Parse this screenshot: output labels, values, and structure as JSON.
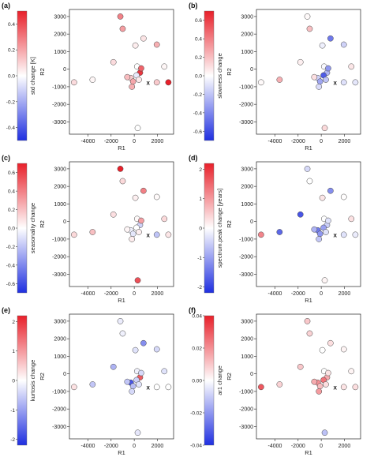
{
  "figure": {
    "panels": [
      {
        "label": "(a)",
        "colorbar_label": "std change [K]",
        "colorbar_ticks": [
          "0.4",
          "0.2",
          "0.0",
          "-0.2",
          "-0.4"
        ],
        "xlabel": "R1",
        "ylabel": "R2"
      },
      {
        "label": "(b)",
        "colorbar_label": "slowness change",
        "colorbar_ticks": [
          "0.6",
          "0.4",
          "0.2",
          "0.0",
          "-0.2",
          "-0.4",
          "-0.6"
        ],
        "xlabel": "R1",
        "ylabel": "R2"
      },
      {
        "label": "(c)",
        "colorbar_label": "seasonality change",
        "colorbar_ticks": [
          "0.6",
          "0.4",
          "0.2",
          "0.0",
          "-0.2",
          "-0.4",
          "-0.6"
        ],
        "xlabel": "R1",
        "ylabel": "R2"
      },
      {
        "label": "(d)",
        "colorbar_label": "spectrum.peak change [years]",
        "colorbar_ticks": [
          "2",
          "1",
          "0",
          "-1",
          "-2"
        ],
        "xlabel": "R1",
        "ylabel": "R2"
      },
      {
        "label": "(e)",
        "colorbar_label": "kurtosis change",
        "colorbar_ticks": [
          "2",
          "1",
          "0",
          "-1",
          "-2"
        ],
        "xlabel": "R1",
        "ylabel": "R2"
      },
      {
        "label": "(f)",
        "colorbar_label": "ar1 change",
        "colorbar_ticks": [
          "0.04",
          "0.02",
          "0.00",
          "-0.02",
          "-0.04"
        ],
        "xlabel": "R1",
        "ylabel": "R2"
      }
    ],
    "x_tick_labels": [
      "-4000",
      "-2000",
      "0",
      "2000"
    ],
    "y_tick_labels": [
      "3000",
      "2000",
      "1000",
      "0",
      "-1000",
      "-2000",
      "-3000"
    ],
    "marker_label": "x",
    "colors": {
      "positive": "#e8202a",
      "neutral": "#ffffff",
      "negative": "#1f2fe0",
      "marker_edge": "#444444"
    }
  },
  "chart_data": [
    {
      "type": "scatter",
      "title": "",
      "xlabel": "R1",
      "ylabel": "R2",
      "xlim": [
        -5600,
        3400
      ],
      "ylim": [
        -3700,
        3400
      ],
      "color_label": "std change [K]",
      "clim": [
        -0.5,
        0.5
      ],
      "points": [
        {
          "x": -5200,
          "y": -750,
          "c": 0.08
        },
        {
          "x": -3600,
          "y": -600,
          "c": 0.02
        },
        {
          "x": -1200,
          "y": 3000,
          "c": 0.28
        },
        {
          "x": -1000,
          "y": 2300,
          "c": 0.22
        },
        {
          "x": 800,
          "y": 1750,
          "c": 0.06
        },
        {
          "x": 1950,
          "y": 1400,
          "c": 0.18
        },
        {
          "x": -1800,
          "y": 400,
          "c": 0.08
        },
        {
          "x": 100,
          "y": 1350,
          "c": 0.04
        },
        {
          "x": 2600,
          "y": 150,
          "c": 0.02
        },
        {
          "x": 250,
          "y": 150,
          "c": 0.0
        },
        {
          "x": 500,
          "y": -200,
          "c": 0.45
        },
        {
          "x": 600,
          "y": 50,
          "c": 0.35
        },
        {
          "x": 200,
          "y": -350,
          "c": -0.05
        },
        {
          "x": -300,
          "y": -500,
          "c": 0.12
        },
        {
          "x": -100,
          "y": -700,
          "c": 0.2
        },
        {
          "x": 400,
          "y": -600,
          "c": 0.05
        },
        {
          "x": -600,
          "y": -450,
          "c": 0.15
        },
        {
          "x": -200,
          "y": -1000,
          "c": 0.18
        },
        {
          "x": 1950,
          "y": -750,
          "c": 0.12
        },
        {
          "x": 2950,
          "y": -750,
          "c": 0.5
        },
        {
          "x": 300,
          "y": -3350,
          "c": 0.0
        }
      ]
    },
    {
      "type": "scatter",
      "title": "",
      "xlabel": "R1",
      "ylabel": "R2",
      "xlim": [
        -5600,
        3400
      ],
      "ylim": [
        -3700,
        3400
      ],
      "color_label": "slowness change",
      "clim": [
        -0.7,
        0.7
      ],
      "points": [
        {
          "x": -5200,
          "y": -750,
          "c": 0.02
        },
        {
          "x": -3600,
          "y": -600,
          "c": 0.25
        },
        {
          "x": -1200,
          "y": 3000,
          "c": 0.02
        },
        {
          "x": -1000,
          "y": 2300,
          "c": 0.2
        },
        {
          "x": 800,
          "y": 1750,
          "c": -0.45
        },
        {
          "x": 1950,
          "y": 1400,
          "c": -0.15
        },
        {
          "x": -1800,
          "y": 400,
          "c": 0.05
        },
        {
          "x": 100,
          "y": 1350,
          "c": -0.05
        },
        {
          "x": 2600,
          "y": 150,
          "c": 0.08
        },
        {
          "x": 250,
          "y": 150,
          "c": -0.02
        },
        {
          "x": 500,
          "y": -200,
          "c": -0.25
        },
        {
          "x": 600,
          "y": 50,
          "c": -0.35
        },
        {
          "x": 200,
          "y": -350,
          "c": -0.55
        },
        {
          "x": -300,
          "y": -500,
          "c": -0.15
        },
        {
          "x": -100,
          "y": -700,
          "c": -0.3
        },
        {
          "x": 400,
          "y": -600,
          "c": -0.2
        },
        {
          "x": -600,
          "y": -450,
          "c": 0.1
        },
        {
          "x": -200,
          "y": -1000,
          "c": -0.12
        },
        {
          "x": 1950,
          "y": -750,
          "c": -0.1
        },
        {
          "x": 2950,
          "y": -750,
          "c": -0.08
        },
        {
          "x": 300,
          "y": -3350,
          "c": 0.12
        }
      ]
    },
    {
      "type": "scatter",
      "title": "",
      "xlabel": "R1",
      "ylabel": "R2",
      "xlim": [
        -5600,
        3400
      ],
      "ylim": [
        -3700,
        3400
      ],
      "color_label": "seasonality change",
      "clim": [
        -0.7,
        0.7
      ],
      "points": [
        {
          "x": -5200,
          "y": -750,
          "c": 0.12
        },
        {
          "x": -3600,
          "y": -600,
          "c": 0.2
        },
        {
          "x": -1200,
          "y": 3000,
          "c": 0.7
        },
        {
          "x": -1000,
          "y": 2300,
          "c": 0.12
        },
        {
          "x": 800,
          "y": 1750,
          "c": 0.4
        },
        {
          "x": 1950,
          "y": 1400,
          "c": 0.02
        },
        {
          "x": -1800,
          "y": 400,
          "c": 0.1
        },
        {
          "x": 100,
          "y": 1350,
          "c": 0.05
        },
        {
          "x": 2600,
          "y": 150,
          "c": 0.12
        },
        {
          "x": 250,
          "y": 150,
          "c": 0.02
        },
        {
          "x": 500,
          "y": -200,
          "c": -0.15
        },
        {
          "x": 600,
          "y": 50,
          "c": 0.3
        },
        {
          "x": 200,
          "y": -350,
          "c": 0.0
        },
        {
          "x": -300,
          "y": -500,
          "c": -0.05
        },
        {
          "x": -100,
          "y": -700,
          "c": -0.08
        },
        {
          "x": 400,
          "y": -600,
          "c": 0.05
        },
        {
          "x": -600,
          "y": -450,
          "c": 0.03
        },
        {
          "x": -200,
          "y": -1000,
          "c": 0.06
        },
        {
          "x": 1950,
          "y": -750,
          "c": -0.2
        },
        {
          "x": 2950,
          "y": -750,
          "c": 0.08
        },
        {
          "x": 300,
          "y": -3350,
          "c": 0.55
        }
      ]
    },
    {
      "type": "scatter",
      "title": "",
      "xlabel": "R1",
      "ylabel": "R2",
      "xlim": [
        -5600,
        3400
      ],
      "ylim": [
        -3700,
        3400
      ],
      "color_label": "spectrum.peak change [years]",
      "clim": [
        -2.2,
        2.2
      ],
      "points": [
        {
          "x": -5200,
          "y": -750,
          "c": 1.2
        },
        {
          "x": -3600,
          "y": -600,
          "c": -1.6
        },
        {
          "x": -1200,
          "y": 3000,
          "c": -0.4
        },
        {
          "x": -1000,
          "y": 2300,
          "c": 0.0
        },
        {
          "x": 800,
          "y": 1750,
          "c": -1.2
        },
        {
          "x": 1950,
          "y": 1400,
          "c": 0.02
        },
        {
          "x": -1800,
          "y": 400,
          "c": -1.8
        },
        {
          "x": 100,
          "y": 1350,
          "c": 0.25
        },
        {
          "x": 2600,
          "y": 150,
          "c": 0.3
        },
        {
          "x": 250,
          "y": 150,
          "c": 0.0
        },
        {
          "x": 500,
          "y": -200,
          "c": -0.5
        },
        {
          "x": 600,
          "y": 50,
          "c": -0.3
        },
        {
          "x": 200,
          "y": -350,
          "c": -1.0
        },
        {
          "x": -300,
          "y": -500,
          "c": -1.4
        },
        {
          "x": -100,
          "y": -700,
          "c": -1.1
        },
        {
          "x": 400,
          "y": -600,
          "c": -0.3
        },
        {
          "x": -600,
          "y": -450,
          "c": -0.8
        },
        {
          "x": -200,
          "y": -1000,
          "c": -0.6
        },
        {
          "x": 1950,
          "y": -750,
          "c": -0.3
        },
        {
          "x": 2950,
          "y": -750,
          "c": -0.2
        },
        {
          "x": 300,
          "y": -3350,
          "c": 0.1
        }
      ]
    },
    {
      "type": "scatter",
      "title": "",
      "xlabel": "R1",
      "ylabel": "R2",
      "xlim": [
        -5600,
        3400
      ],
      "ylim": [
        -3700,
        3400
      ],
      "color_label": "kurtosis change",
      "clim": [
        -2.2,
        2.2
      ],
      "points": [
        {
          "x": -5200,
          "y": -750,
          "c": 0.3
        },
        {
          "x": -3600,
          "y": -600,
          "c": -0.6
        },
        {
          "x": -1200,
          "y": 3000,
          "c": -0.2
        },
        {
          "x": -1000,
          "y": 2300,
          "c": -0.15
        },
        {
          "x": 800,
          "y": 1750,
          "c": -1.2
        },
        {
          "x": 1950,
          "y": 1400,
          "c": -0.4
        },
        {
          "x": -1800,
          "y": 400,
          "c": -0.8
        },
        {
          "x": 100,
          "y": 1350,
          "c": -0.3
        },
        {
          "x": 2600,
          "y": 150,
          "c": -0.3
        },
        {
          "x": 250,
          "y": 150,
          "c": -0.15
        },
        {
          "x": 500,
          "y": -200,
          "c": 1.6
        },
        {
          "x": 600,
          "y": 50,
          "c": -0.4
        },
        {
          "x": 200,
          "y": -350,
          "c": -0.5
        },
        {
          "x": -300,
          "y": -500,
          "c": -1.8
        },
        {
          "x": -100,
          "y": -700,
          "c": -0.7
        },
        {
          "x": 400,
          "y": -600,
          "c": -0.3
        },
        {
          "x": -600,
          "y": -450,
          "c": -0.6
        },
        {
          "x": -200,
          "y": -1000,
          "c": -0.4
        },
        {
          "x": 1950,
          "y": -750,
          "c": 0.0
        },
        {
          "x": 2950,
          "y": -750,
          "c": 0.0
        },
        {
          "x": 300,
          "y": -3350,
          "c": -0.25
        }
      ]
    },
    {
      "type": "scatter",
      "title": "",
      "xlabel": "R1",
      "ylabel": "R2",
      "xlim": [
        -5600,
        3400
      ],
      "ylim": [
        -3700,
        3400
      ],
      "color_label": "ar1 change",
      "clim": [
        -0.04,
        0.04
      ],
      "points": [
        {
          "x": -5200,
          "y": -750,
          "c": 0.03
        },
        {
          "x": -3600,
          "y": -600,
          "c": 0.008
        },
        {
          "x": -1200,
          "y": 3000,
          "c": 0.01
        },
        {
          "x": -1000,
          "y": 2300,
          "c": 0.008
        },
        {
          "x": 800,
          "y": 1750,
          "c": 0.006
        },
        {
          "x": 1950,
          "y": 1400,
          "c": 0.002
        },
        {
          "x": -1800,
          "y": 400,
          "c": 0.01
        },
        {
          "x": 100,
          "y": 1350,
          "c": 0.0
        },
        {
          "x": 2600,
          "y": 150,
          "c": 0.002
        },
        {
          "x": 250,
          "y": 150,
          "c": 0.0
        },
        {
          "x": 500,
          "y": -200,
          "c": 0.015
        },
        {
          "x": 600,
          "y": 50,
          "c": 0.005
        },
        {
          "x": 200,
          "y": -350,
          "c": 0.025
        },
        {
          "x": -300,
          "y": -500,
          "c": 0.02
        },
        {
          "x": -100,
          "y": -700,
          "c": 0.012
        },
        {
          "x": 400,
          "y": -600,
          "c": 0.006
        },
        {
          "x": -600,
          "y": -450,
          "c": 0.015
        },
        {
          "x": -200,
          "y": -1000,
          "c": 0.018
        },
        {
          "x": 1950,
          "y": -750,
          "c": 0.005
        },
        {
          "x": 2950,
          "y": -750,
          "c": 0.006
        },
        {
          "x": 300,
          "y": -3350,
          "c": -0.012
        }
      ]
    }
  ]
}
